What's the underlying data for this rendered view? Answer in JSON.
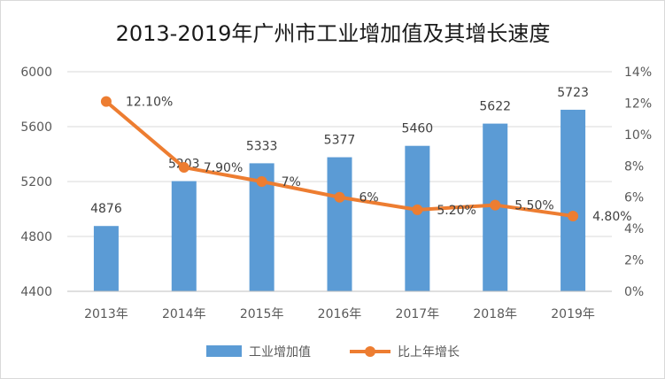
{
  "chart_data": {
    "type": "bar",
    "title": "2013-2019年广州市工业增加值及其增长速度",
    "categories": [
      "2013年",
      "2014年",
      "2015年",
      "2016年",
      "2017年",
      "2018年",
      "2019年"
    ],
    "series": [
      {
        "name": "工业增加值",
        "type": "bar",
        "axis": "left",
        "values": [
          4876,
          5203,
          5333,
          5377,
          5460,
          5622,
          5723
        ],
        "labels": [
          "4876",
          "5203",
          "5333",
          "5377",
          "5460",
          "5622",
          "5723"
        ],
        "color": "#5b9bd5"
      },
      {
        "name": "比上年增长",
        "type": "line",
        "axis": "right",
        "values": [
          12.1,
          7.9,
          7.0,
          6.0,
          5.2,
          5.5,
          4.8
        ],
        "labels": [
          "12.10%",
          "7.90%",
          "7%",
          "6%",
          "5.20%",
          "5.50%",
          "4.80%"
        ],
        "color": "#ed7d31"
      }
    ],
    "y_left": {
      "min": 4400,
      "max": 6000,
      "ticks": [
        "4400",
        "4800",
        "5200",
        "5600",
        "6000"
      ]
    },
    "y_right": {
      "min": 0,
      "max": 14,
      "ticks": [
        "0%",
        "2%",
        "4%",
        "6%",
        "8%",
        "10%",
        "12%",
        "14%"
      ]
    },
    "grid": true,
    "legend_position": "bottom"
  }
}
